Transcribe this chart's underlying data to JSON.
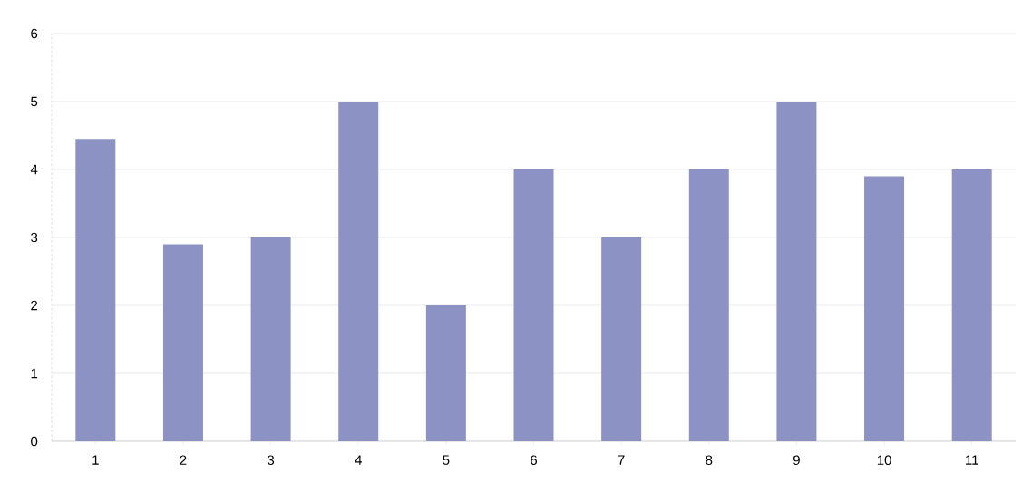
{
  "chart_data": {
    "type": "bar",
    "categories": [
      "1",
      "2",
      "3",
      "4",
      "5",
      "6",
      "7",
      "8",
      "9",
      "10",
      "11"
    ],
    "values": [
      4.45,
      2.9,
      3,
      5,
      2,
      4,
      3,
      4,
      5,
      3.9,
      4
    ],
    "color": "#8c93c4",
    "ylim": [
      0,
      6
    ],
    "yticks": [
      0,
      1,
      2,
      3,
      4,
      5,
      6
    ],
    "grid": "y"
  }
}
